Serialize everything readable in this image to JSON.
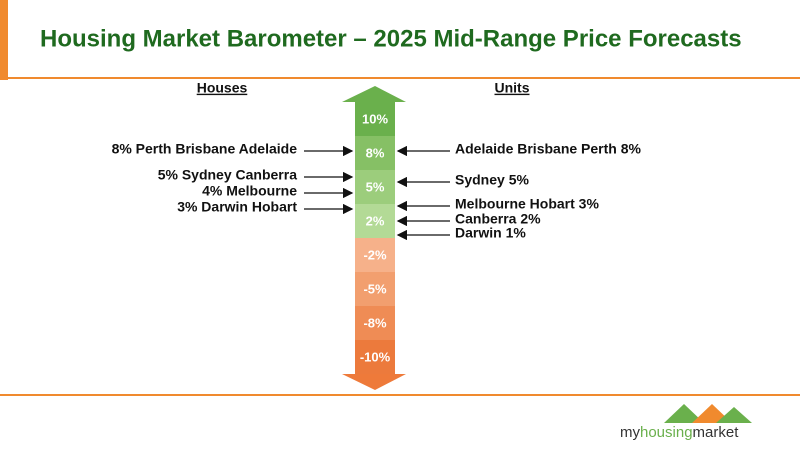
{
  "title": "Housing Market Barometer – 2025 Mid-Range Price Forecasts",
  "headers": {
    "houses": "Houses",
    "units": "Units"
  },
  "scale": [
    "10%",
    "8%",
    "5%",
    "2%",
    "-2%",
    "-5%",
    "-8%",
    "-10%"
  ],
  "houses": [
    "8% Perth Brisbane Adelaide",
    "5% Sydney Canberra",
    "4% Melbourne",
    "3% Darwin Hobart"
  ],
  "units": [
    "Adelaide Brisbane Perth 8%",
    "Sydney 5%",
    "Melbourne Hobart 3%",
    "Canberra 2%",
    "Darwin 1%"
  ],
  "logo": [
    "my",
    "housing",
    "market"
  ]
}
